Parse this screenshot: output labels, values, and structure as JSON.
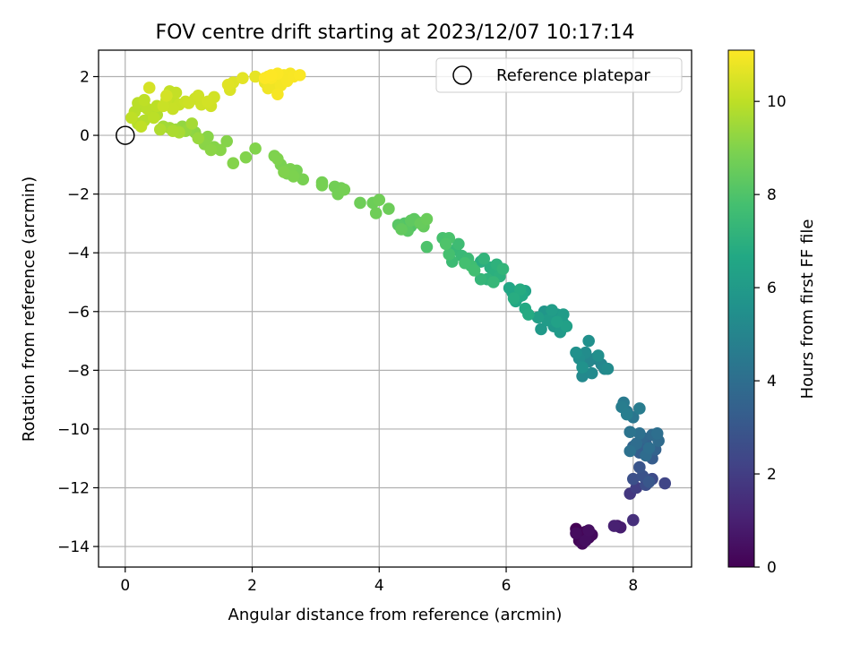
{
  "chart_data": {
    "type": "scatter",
    "title": "FOV centre drift starting at 2023/12/07 10:17:14",
    "xlabel": "Angular distance from reference (arcmin)",
    "ylabel": "Rotation from reference (arcmin)",
    "xlim": [
      -0.42,
      8.92
    ],
    "ylim": [
      -14.7,
      2.9
    ],
    "xticks": [
      0,
      2,
      4,
      6,
      8
    ],
    "yticks": [
      2,
      0,
      -2,
      -4,
      -6,
      -8,
      -10,
      -12,
      -14
    ],
    "grid": true,
    "legend": {
      "placement": "top-right",
      "entries": [
        "Reference platepar"
      ]
    },
    "reference_point": {
      "x": 0,
      "y": 0,
      "label": "Reference platepar"
    },
    "colorbar": {
      "label": "Hours from first FF file",
      "colormap": "viridis",
      "range": [
        0,
        11.1
      ],
      "ticks": [
        0,
        2,
        4,
        6,
        8,
        10
      ]
    },
    "points": [
      [
        7.1,
        -13.4,
        0.0
      ],
      [
        7.2,
        -13.6,
        0.05
      ],
      [
        7.15,
        -13.8,
        0.1
      ],
      [
        7.25,
        -13.5,
        0.15
      ],
      [
        7.3,
        -13.7,
        0.2
      ],
      [
        7.2,
        -13.9,
        0.25
      ],
      [
        7.35,
        -13.6,
        0.3
      ],
      [
        7.1,
        -13.55,
        0.35
      ],
      [
        7.25,
        -13.8,
        0.4
      ],
      [
        7.3,
        -13.45,
        0.45
      ],
      [
        7.75,
        -13.3,
        0.8
      ],
      [
        7.8,
        -13.35,
        0.9
      ],
      [
        7.7,
        -13.3,
        1.0
      ],
      [
        8.0,
        -13.1,
        1.5
      ],
      [
        7.95,
        -12.2,
        1.8
      ],
      [
        8.05,
        -12.0,
        2.0
      ],
      [
        8.5,
        -11.85,
        2.3
      ],
      [
        8.3,
        -11.7,
        2.5
      ],
      [
        8.2,
        -11.9,
        2.6
      ],
      [
        8.0,
        -11.7,
        2.7
      ],
      [
        8.15,
        -11.6,
        2.8
      ],
      [
        8.1,
        -11.3,
        2.9
      ],
      [
        8.25,
        -11.8,
        3.0
      ],
      [
        8.3,
        -11.0,
        3.2
      ],
      [
        8.1,
        -10.8,
        3.3
      ],
      [
        8.2,
        -10.5,
        3.4
      ],
      [
        8.35,
        -10.7,
        3.5
      ],
      [
        8.0,
        -10.6,
        3.6
      ],
      [
        8.15,
        -10.3,
        3.7
      ],
      [
        8.3,
        -10.2,
        3.8
      ],
      [
        8.4,
        -10.4,
        3.85
      ],
      [
        8.2,
        -10.9,
        3.9
      ],
      [
        8.05,
        -10.5,
        3.95
      ],
      [
        8.25,
        -10.65,
        4.0
      ],
      [
        8.38,
        -10.15,
        4.05
      ],
      [
        8.1,
        -10.15,
        4.1
      ],
      [
        7.95,
        -10.75,
        4.15
      ],
      [
        7.95,
        -10.1,
        4.25
      ],
      [
        8.0,
        -9.6,
        4.35
      ],
      [
        7.9,
        -9.4,
        4.45
      ],
      [
        7.85,
        -9.1,
        4.55
      ],
      [
        8.1,
        -9.3,
        4.6
      ],
      [
        7.82,
        -9.25,
        4.65
      ],
      [
        7.9,
        -9.5,
        4.7
      ],
      [
        7.4,
        -7.6,
        5.0
      ],
      [
        7.5,
        -7.8,
        5.05
      ],
      [
        7.3,
        -7.7,
        5.1
      ],
      [
        7.55,
        -7.95,
        5.15
      ],
      [
        7.2,
        -8.2,
        5.2
      ],
      [
        7.35,
        -8.1,
        5.25
      ],
      [
        7.6,
        -7.95,
        5.3
      ],
      [
        7.25,
        -7.4,
        5.35
      ],
      [
        7.15,
        -7.6,
        5.4
      ],
      [
        7.45,
        -7.5,
        5.45
      ],
      [
        7.3,
        -7.0,
        5.5
      ],
      [
        7.1,
        -7.4,
        5.55
      ],
      [
        7.2,
        -7.9,
        5.6
      ],
      [
        6.9,
        -6.4,
        5.7
      ],
      [
        6.7,
        -6.2,
        5.75
      ],
      [
        6.6,
        -6.0,
        5.8
      ],
      [
        6.8,
        -6.1,
        5.85
      ],
      [
        6.75,
        -6.5,
        5.9
      ],
      [
        6.55,
        -6.6,
        5.95
      ],
      [
        6.85,
        -6.7,
        6.0
      ],
      [
        6.65,
        -6.3,
        6.05
      ],
      [
        6.9,
        -6.1,
        6.1
      ],
      [
        6.72,
        -5.95,
        6.15
      ],
      [
        6.5,
        -6.2,
        6.2
      ],
      [
        6.95,
        -6.5,
        6.25
      ],
      [
        6.8,
        -6.35,
        6.3
      ],
      [
        6.3,
        -5.3,
        6.4
      ],
      [
        6.2,
        -5.5,
        6.45
      ],
      [
        6.1,
        -5.35,
        6.5
      ],
      [
        6.05,
        -5.2,
        6.55
      ],
      [
        6.15,
        -5.65,
        6.6
      ],
      [
        6.25,
        -5.45,
        6.65
      ],
      [
        6.3,
        -5.9,
        6.7
      ],
      [
        6.35,
        -6.1,
        6.75
      ],
      [
        6.22,
        -5.25,
        6.8
      ],
      [
        6.12,
        -5.55,
        6.85
      ],
      [
        5.6,
        -4.3,
        6.9
      ],
      [
        5.75,
        -4.5,
        6.95
      ],
      [
        5.8,
        -4.7,
        7.0
      ],
      [
        5.9,
        -4.8,
        7.05
      ],
      [
        5.85,
        -4.4,
        7.1
      ],
      [
        5.7,
        -4.9,
        7.15
      ],
      [
        5.65,
        -4.2,
        7.2
      ],
      [
        5.95,
        -4.55,
        7.25
      ],
      [
        5.6,
        -4.9,
        7.3
      ],
      [
        5.8,
        -5.0,
        7.35
      ],
      [
        5.2,
        -3.9,
        7.4
      ],
      [
        5.3,
        -4.1,
        7.45
      ],
      [
        5.4,
        -4.2,
        7.5
      ],
      [
        5.15,
        -4.3,
        7.55
      ],
      [
        5.25,
        -3.7,
        7.6
      ],
      [
        5.45,
        -4.45,
        7.65
      ],
      [
        5.5,
        -4.6,
        7.7
      ],
      [
        5.35,
        -4.35,
        7.75
      ],
      [
        5.1,
        -4.05,
        7.8
      ],
      [
        5.0,
        -3.5,
        7.85
      ],
      [
        5.1,
        -3.5,
        7.9
      ],
      [
        4.75,
        -3.8,
        7.95
      ],
      [
        5.05,
        -3.7,
        8.0
      ],
      [
        4.5,
        -3.1,
        8.05
      ],
      [
        4.4,
        -3.0,
        8.1
      ],
      [
        4.6,
        -2.95,
        8.15
      ],
      [
        4.3,
        -3.05,
        8.2
      ],
      [
        4.45,
        -3.25,
        8.25
      ],
      [
        4.55,
        -2.85,
        8.3
      ],
      [
        4.5,
        -2.9,
        8.35
      ],
      [
        4.35,
        -3.2,
        8.4
      ],
      [
        4.7,
        -3.1,
        8.45
      ],
      [
        4.65,
        -3.0,
        8.5
      ],
      [
        4.75,
        -2.85,
        8.55
      ],
      [
        4.15,
        -2.5,
        8.6
      ],
      [
        3.9,
        -2.3,
        8.62
      ],
      [
        3.7,
        -2.3,
        8.64
      ],
      [
        3.95,
        -2.65,
        8.66
      ],
      [
        4.0,
        -2.2,
        8.68
      ],
      [
        3.4,
        -1.8,
        8.7
      ],
      [
        3.3,
        -1.75,
        8.72
      ],
      [
        3.35,
        -2.0,
        8.74
      ],
      [
        3.1,
        -1.6,
        8.76
      ],
      [
        3.45,
        -1.85,
        8.78
      ],
      [
        3.1,
        -1.7,
        8.8
      ],
      [
        2.7,
        -1.2,
        8.82
      ],
      [
        2.8,
        -1.5,
        8.84
      ],
      [
        2.55,
        -1.3,
        8.86
      ],
      [
        2.45,
        -1.0,
        8.88
      ],
      [
        2.6,
        -1.15,
        8.9
      ],
      [
        2.65,
        -1.4,
        8.92
      ],
      [
        2.35,
        -0.7,
        8.94
      ],
      [
        2.4,
        -0.8,
        8.96
      ],
      [
        2.5,
        -1.25,
        8.98
      ],
      [
        2.05,
        -0.45,
        9.0
      ],
      [
        1.9,
        -0.75,
        9.02
      ],
      [
        1.7,
        -0.95,
        9.04
      ],
      [
        1.6,
        -0.2,
        9.06
      ],
      [
        1.4,
        -0.4,
        9.08
      ],
      [
        1.5,
        -0.5,
        9.1
      ],
      [
        1.3,
        -0.05,
        9.12
      ],
      [
        1.25,
        -0.3,
        9.14
      ],
      [
        1.35,
        -0.5,
        9.16
      ],
      [
        1.1,
        0.1,
        9.2
      ],
      [
        1.0,
        0.2,
        9.25
      ],
      [
        0.9,
        0.3,
        9.3
      ],
      [
        0.95,
        0.15,
        9.35
      ],
      [
        1.15,
        -0.1,
        9.4
      ],
      [
        0.8,
        0.2,
        9.45
      ],
      [
        0.7,
        0.25,
        9.5
      ],
      [
        0.6,
        0.3,
        9.55
      ],
      [
        1.05,
        0.4,
        9.6
      ],
      [
        0.85,
        0.1,
        9.65
      ],
      [
        0.75,
        0.15,
        9.7
      ],
      [
        0.55,
        0.2,
        9.75
      ],
      [
        0.5,
        0.7,
        9.8
      ],
      [
        0.4,
        0.8,
        9.82
      ],
      [
        0.3,
        0.5,
        9.84
      ],
      [
        0.2,
        0.4,
        9.86
      ],
      [
        0.25,
        1.0,
        9.88
      ],
      [
        0.15,
        0.8,
        9.9
      ],
      [
        0.2,
        1.1,
        9.92
      ],
      [
        0.35,
        0.9,
        9.94
      ],
      [
        0.45,
        0.6,
        9.96
      ],
      [
        0.5,
        1.0,
        9.98
      ],
      [
        0.3,
        1.2,
        10.0
      ],
      [
        0.1,
        0.6,
        10.02
      ],
      [
        0.25,
        0.3,
        10.04
      ],
      [
        0.65,
        1.1,
        10.06
      ],
      [
        0.75,
        1.3,
        10.08
      ],
      [
        0.7,
        1.5,
        10.1
      ],
      [
        0.8,
        1.45,
        10.12
      ],
      [
        0.65,
        1.2,
        10.14
      ],
      [
        0.85,
        1.05,
        10.16
      ],
      [
        0.75,
        0.9,
        10.18
      ],
      [
        0.6,
        1.0,
        10.2
      ],
      [
        0.95,
        1.15,
        10.22
      ],
      [
        1.1,
        1.25,
        10.24
      ],
      [
        1.0,
        1.1,
        10.26
      ],
      [
        1.2,
        1.05,
        10.28
      ],
      [
        1.15,
        1.35,
        10.3
      ],
      [
        1.35,
        1.0,
        10.32
      ],
      [
        1.4,
        1.3,
        10.34
      ],
      [
        1.3,
        1.15,
        10.36
      ],
      [
        0.65,
        1.35,
        10.38
      ],
      [
        0.38,
        1.62,
        10.4
      ],
      [
        1.65,
        1.55,
        10.5
      ],
      [
        1.7,
        1.8,
        10.55
      ],
      [
        1.62,
        1.72,
        10.6
      ],
      [
        1.85,
        1.95,
        10.65
      ],
      [
        2.05,
        2.0,
        10.7
      ],
      [
        2.2,
        1.8,
        10.75
      ],
      [
        2.25,
        2.0,
        10.8
      ],
      [
        2.3,
        1.7,
        10.85
      ],
      [
        2.35,
        1.9,
        10.87
      ],
      [
        2.25,
        1.6,
        10.88
      ],
      [
        2.4,
        2.05,
        10.9
      ],
      [
        2.5,
        1.85,
        10.92
      ],
      [
        2.45,
        1.7,
        10.94
      ],
      [
        2.55,
        1.95,
        10.96
      ],
      [
        2.4,
        1.4,
        10.97
      ],
      [
        2.6,
        2.1,
        10.98
      ],
      [
        2.5,
        2.05,
        10.99
      ],
      [
        2.55,
        1.85,
        11.0
      ],
      [
        2.65,
        2.0,
        11.02
      ],
      [
        2.75,
        2.05,
        11.04
      ],
      [
        2.3,
        1.95,
        11.05
      ],
      [
        2.4,
        2.1,
        11.06
      ],
      [
        2.2,
        1.95,
        11.08
      ],
      [
        2.3,
        2.05,
        11.1
      ]
    ]
  }
}
